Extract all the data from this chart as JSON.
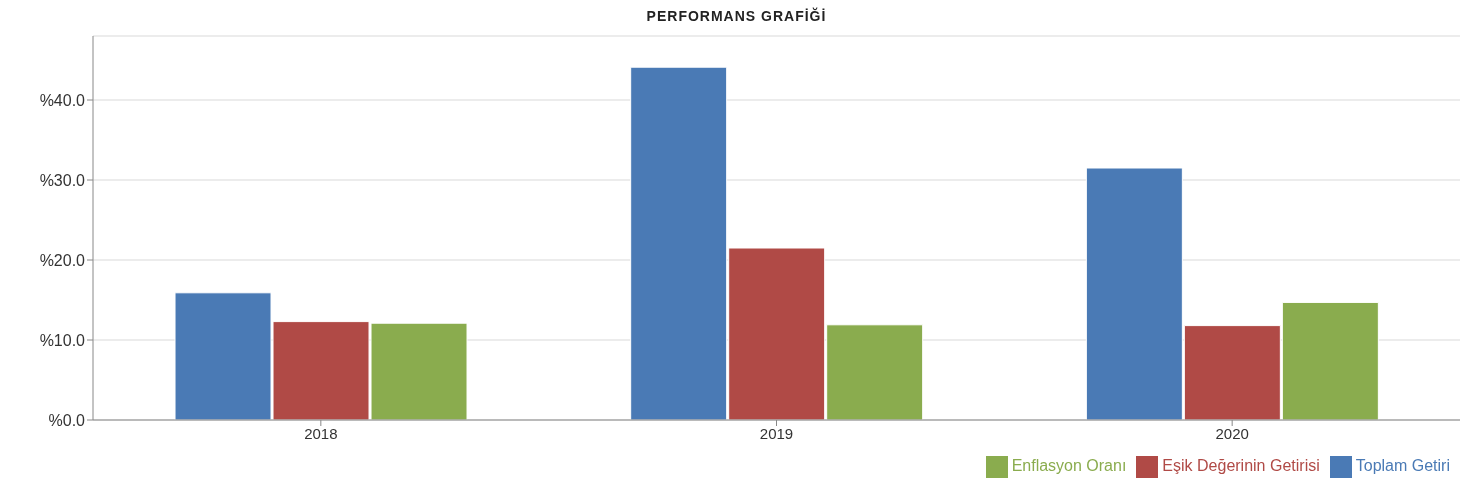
{
  "chart_data": {
    "type": "bar",
    "title": "PERFORMANS GRAFİĞİ",
    "categories": [
      "2018",
      "2019",
      "2020"
    ],
    "series": [
      {
        "name": "Toplam Getiri",
        "color": "#4a7ab5",
        "values": [
          15.9,
          44.1,
          31.5
        ]
      },
      {
        "name": "Eşik Değerinin Getirisi",
        "color": "#b04a46",
        "values": [
          12.3,
          21.5,
          11.8
        ]
      },
      {
        "name": "Enflasyon Oranı",
        "color": "#8aac4e",
        "values": [
          12.1,
          11.9,
          14.7
        ]
      }
    ],
    "ylim": [
      0,
      48
    ],
    "yticks": [
      {
        "value": 0,
        "label": "%0.0"
      },
      {
        "value": 10,
        "label": "%10.0"
      },
      {
        "value": 20,
        "label": "%20.0"
      },
      {
        "value": 30,
        "label": "%30.0"
      },
      {
        "value": 40,
        "label": "%40.0"
      }
    ],
    "grid": "y",
    "legend": "bottom right"
  }
}
